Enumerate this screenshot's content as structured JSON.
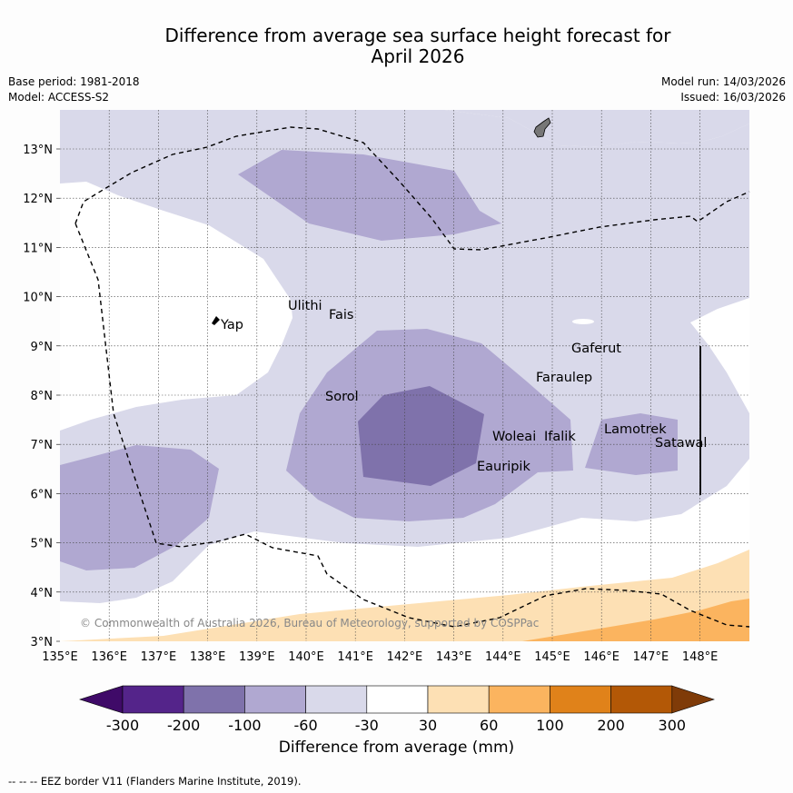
{
  "header": {
    "title_line1": "Difference from average sea surface height forecast for",
    "title_line2": "April 2026",
    "base_period": "Base period: 1981-2018",
    "model": "Model: ACCESS-S2",
    "model_run": "Model run: 14/03/2026",
    "issued": "Issued: 16/03/2026"
  },
  "map": {
    "lat_labels": [
      "13°N",
      "12°N",
      "11°N",
      "10°N",
      "9°N",
      "8°N",
      "7°N",
      "6°N",
      "5°N",
      "4°N",
      "3°N"
    ],
    "lon_labels": [
      "135°E",
      "136°E",
      "137°E",
      "138°E",
      "139°E",
      "140°E",
      "141°E",
      "142°E",
      "143°E",
      "144°E",
      "145°E",
      "146°E",
      "147°E",
      "148°E"
    ],
    "islands": [
      "Yap",
      "Ulithi",
      "Fais",
      "Sorol",
      "Gaferut",
      "Faraulep",
      "Woleai",
      "Ifalik",
      "Eauripik",
      "Lamotrek",
      "Satawal"
    ],
    "copyright": "© Commonwealth of Australia 2026, Bureau of Meteorology, supported by COSPPac"
  },
  "colorbar": {
    "title": "Difference from average (mm)",
    "ticks": [
      "-300",
      "-200",
      "-100",
      "-60",
      "-30",
      "30",
      "60",
      "100",
      "200",
      "300"
    ],
    "colors": [
      "#3f0a68",
      "#54248a",
      "#7f72ab",
      "#b0a8d1",
      "#d9d9ea",
      "#ffffff",
      "#fde0b4",
      "#fbb45f",
      "#e0821a",
      "#b35806",
      "#7f3b08"
    ]
  },
  "footer": "--  --  -- EEZ border V11 (Flanders Marine Institute, 2019)."
}
